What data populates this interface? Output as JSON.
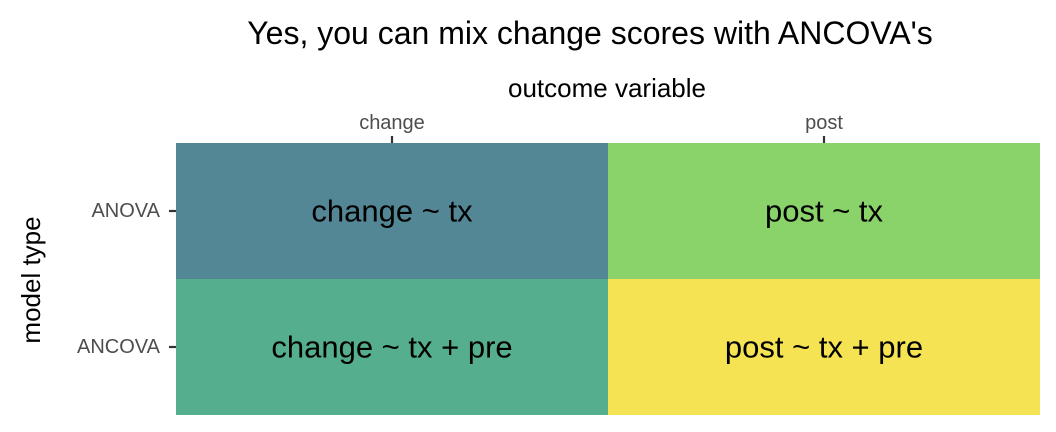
{
  "chart_data": {
    "type": "heatmap",
    "title": "Yes, you can mix change scores with ANCOVA's",
    "xlabel": "outcome variable",
    "ylabel": "model type",
    "x_axis_position": "top",
    "grid": false,
    "legend": "none",
    "x_categories": [
      "change",
      "post"
    ],
    "y_categories": [
      "ANOVA",
      "ANCOVA"
    ],
    "cells": [
      {
        "x": "change",
        "y": "ANOVA",
        "label": "change ~ tx",
        "color": "#538795"
      },
      {
        "x": "post",
        "y": "ANOVA",
        "label": "post ~ tx",
        "color": "#8AD36B"
      },
      {
        "x": "change",
        "y": "ANCOVA",
        "label": "change ~ tx + pre",
        "color": "#55AF8E"
      },
      {
        "x": "post",
        "y": "ANCOVA",
        "label": "post ~ tx + pre",
        "color": "#F5E354"
      }
    ]
  }
}
